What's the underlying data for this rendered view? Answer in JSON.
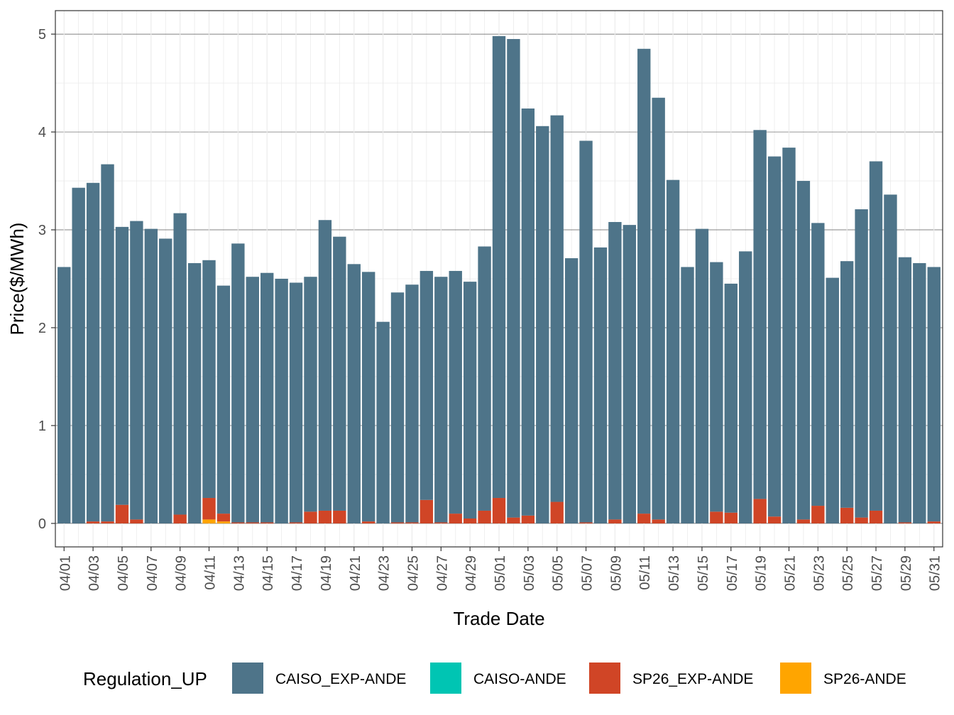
{
  "chart_data": {
    "type": "bar",
    "stacked": true,
    "xlabel": "Trade Date",
    "ylabel": "Price($/MWh)",
    "ylim": [
      -0.24,
      5.24
    ],
    "yticks": [
      0,
      1,
      2,
      3,
      4,
      5
    ],
    "grid": true,
    "legend_title": "Regulation_UP",
    "legend_position": "bottom",
    "categories": [
      "04/01",
      "04/02",
      "04/03",
      "04/04",
      "04/05",
      "04/06",
      "04/07",
      "04/08",
      "04/09",
      "04/10",
      "04/11",
      "04/12",
      "04/13",
      "04/14",
      "04/15",
      "04/16",
      "04/17",
      "04/18",
      "04/19",
      "04/20",
      "04/21",
      "04/22",
      "04/23",
      "04/24",
      "04/25",
      "04/26",
      "04/27",
      "04/28",
      "04/29",
      "04/30",
      "05/01",
      "05/02",
      "05/03",
      "05/04",
      "05/05",
      "05/06",
      "05/07",
      "05/08",
      "05/09",
      "05/10",
      "05/11",
      "05/12",
      "05/13",
      "05/14",
      "05/15",
      "05/16",
      "05/17",
      "05/18",
      "05/19",
      "05/20",
      "05/21",
      "05/22",
      "05/23",
      "05/24",
      "05/25",
      "05/26",
      "05/27",
      "05/28",
      "05/29",
      "05/30",
      "05/31"
    ],
    "tick_labels": [
      "04/01",
      "04/03",
      "04/05",
      "04/07",
      "04/09",
      "04/11",
      "04/13",
      "04/15",
      "04/17",
      "04/19",
      "04/21",
      "04/23",
      "04/25",
      "04/27",
      "04/29",
      "05/01",
      "05/03",
      "05/05",
      "05/07",
      "05/09",
      "05/11",
      "05/13",
      "05/15",
      "05/17",
      "05/19",
      "05/21",
      "05/23",
      "05/25",
      "05/27",
      "05/29",
      "05/31"
    ],
    "series": [
      {
        "name": "CAISO_EXP-ANDE",
        "color": "#4e7489",
        "values": [
          2.62,
          3.43,
          3.46,
          3.65,
          2.84,
          3.05,
          3.01,
          2.91,
          3.08,
          2.66,
          2.43,
          2.33,
          2.85,
          2.51,
          2.55,
          2.5,
          2.45,
          2.4,
          2.97,
          2.8,
          2.65,
          2.55,
          2.06,
          2.35,
          2.43,
          2.34,
          2.51,
          2.48,
          2.42,
          2.7,
          4.72,
          4.89,
          4.16,
          4.06,
          3.95,
          2.71,
          3.9,
          2.82,
          3.04,
          3.05,
          4.75,
          4.31,
          3.51,
          2.62,
          3.01,
          2.55,
          2.34,
          2.78,
          3.77,
          3.68,
          3.84,
          3.46,
          2.89,
          2.51,
          2.52,
          3.15,
          3.57,
          3.36,
          2.71,
          2.66,
          2.6
        ]
      },
      {
        "name": "CAISO-ANDE",
        "color": "#00c5b3",
        "values": [
          0,
          0,
          0,
          0,
          0,
          0,
          0,
          0,
          0,
          0,
          0,
          0,
          0,
          0,
          0,
          0,
          0,
          0,
          0,
          0,
          0,
          0,
          0,
          0,
          0,
          0,
          0,
          0,
          0,
          0,
          0,
          0,
          0,
          0,
          0,
          0,
          0,
          0,
          0,
          0,
          0,
          0,
          0,
          0,
          0,
          0,
          0,
          0,
          0,
          0,
          0,
          0,
          0,
          0,
          0,
          0,
          0,
          0,
          0,
          0,
          0
        ]
      },
      {
        "name": "SP26_EXP-ANDE",
        "color": "#d04526",
        "values": [
          0,
          0,
          0.02,
          0.02,
          0.19,
          0.04,
          0,
          0,
          0.09,
          0,
          0.22,
          0.08,
          0.01,
          0.01,
          0.01,
          0,
          0.01,
          0.12,
          0.13,
          0.13,
          0,
          0.02,
          0,
          0.01,
          0.01,
          0.24,
          0.01,
          0.1,
          0.05,
          0.13,
          0.26,
          0.06,
          0.08,
          0,
          0.22,
          0,
          0.01,
          0,
          0.04,
          0,
          0.1,
          0.04,
          0,
          0,
          0,
          0.12,
          0.11,
          0,
          0.25,
          0.07,
          0,
          0.04,
          0.18,
          0,
          0.16,
          0.06,
          0.13,
          0,
          0.01,
          0,
          0.02
        ]
      },
      {
        "name": "SP26-ANDE",
        "color": "#ffa500",
        "values": [
          0,
          0,
          0,
          0,
          0,
          0,
          0,
          0,
          0,
          0,
          0.04,
          0.02,
          0,
          0,
          0,
          0,
          0,
          0,
          0,
          0,
          0,
          0,
          0,
          0,
          0,
          0,
          0,
          0,
          0,
          0,
          0,
          0,
          0,
          0,
          0,
          0,
          0,
          0,
          0,
          0,
          0,
          0,
          0,
          0,
          0,
          0,
          0,
          0,
          0,
          0,
          0,
          0,
          0,
          0,
          0,
          0,
          0,
          0,
          0,
          0,
          0
        ]
      }
    ]
  }
}
